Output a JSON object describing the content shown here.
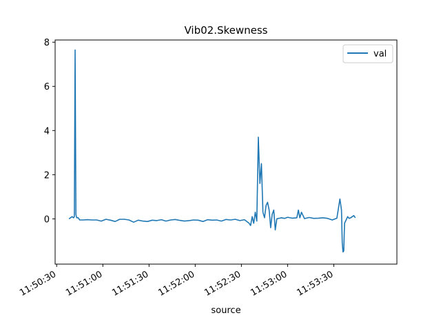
{
  "chart_data": {
    "type": "line",
    "title": "Vib02.Skewness",
    "xlabel": "source",
    "ylabel": "",
    "x_tick_labels": [
      "11:50:30",
      "11:51:00",
      "11:51:30",
      "11:52:00",
      "11:52:30",
      "11:53:00",
      "11:53:30"
    ],
    "x_tick_times": [
      "11:50:30",
      "11:51:00",
      "11:51:30",
      "11:52:00",
      "11:52:30",
      "11:53:00",
      "11:53:30"
    ],
    "y_ticks": [
      0,
      2,
      4,
      6,
      8
    ],
    "xlim": [
      "11:50:29",
      "11:54:11"
    ],
    "ylim": [
      -2.05,
      8.1
    ],
    "legend": {
      "position": "top-right",
      "entries": [
        "val"
      ]
    },
    "grid": false,
    "series": [
      {
        "name": "val",
        "color": "#1f77b4",
        "x": [
          "11:50:38",
          "11:50:39",
          "11:50:40",
          "11:50:41",
          "11:50:41.5",
          "11:50:42",
          "11:50:42.5",
          "11:50:43",
          "11:50:44",
          "11:50:45",
          "11:50:47",
          "11:50:50",
          "11:50:53",
          "11:50:56",
          "11:50:59",
          "11:51:02",
          "11:51:05",
          "11:51:08",
          "11:51:11",
          "11:51:14",
          "11:51:17",
          "11:51:20",
          "11:51:23",
          "11:51:26",
          "11:51:29",
          "11:51:32",
          "11:51:35",
          "11:51:38",
          "11:51:41",
          "11:51:44",
          "11:51:47",
          "11:51:50",
          "11:51:53",
          "11:51:56",
          "11:51:59",
          "11:52:02",
          "11:52:05",
          "11:52:08",
          "11:52:11",
          "11:52:14",
          "11:52:17",
          "11:52:20",
          "11:52:23",
          "11:52:26",
          "11:52:29",
          "11:52:32",
          "11:52:35",
          "11:52:36",
          "11:52:37",
          "11:52:38",
          "11:52:39",
          "11:52:40",
          "11:52:41",
          "11:52:42",
          "11:52:43",
          "11:52:44",
          "11:52:45",
          "11:52:46",
          "11:52:47",
          "11:52:48",
          "11:52:49",
          "11:52:50",
          "11:52:51",
          "11:52:52",
          "11:52:53",
          "11:52:54",
          "11:52:55",
          "11:52:56",
          "11:52:58",
          "11:53:00",
          "11:53:03",
          "11:53:06",
          "11:53:07",
          "11:53:08",
          "11:53:09",
          "11:53:11",
          "11:53:14",
          "11:53:17",
          "11:53:20",
          "11:53:23",
          "11:53:26",
          "11:53:29",
          "11:53:32",
          "11:53:34",
          "11:53:35",
          "11:53:35.5",
          "11:53:36",
          "11:53:36.5",
          "11:53:37",
          "11:53:38",
          "11:53:39",
          "11:53:40",
          "11:53:41",
          "11:53:42",
          "11:53:43",
          "11:53:44"
        ],
        "values": [
          0,
          0.05,
          0.1,
          0.05,
          0.1,
          7.65,
          0.2,
          0.05,
          0.05,
          -0.05,
          -0.05,
          -0.04,
          -0.05,
          -0.05,
          -0.1,
          -0.02,
          -0.06,
          -0.12,
          -0.02,
          -0.02,
          -0.05,
          -0.15,
          -0.06,
          -0.1,
          -0.12,
          -0.06,
          -0.08,
          -0.04,
          -0.1,
          -0.05,
          -0.03,
          -0.07,
          -0.1,
          -0.08,
          -0.05,
          -0.06,
          -0.12,
          -0.04,
          -0.06,
          -0.05,
          -0.1,
          -0.03,
          -0.05,
          -0.02,
          -0.08,
          -0.04,
          -0.2,
          -0.3,
          0.1,
          -0.2,
          0.3,
          -0.1,
          3.7,
          1.6,
          2.5,
          0.3,
          0.05,
          0.6,
          0.75,
          0.4,
          -0.4,
          0.2,
          0.4,
          -0.5,
          0,
          0.02,
          0.03,
          0.05,
          0.02,
          0.07,
          0.03,
          0.05,
          0.4,
          0.05,
          0.3,
          0.01,
          0.06,
          0.02,
          0.03,
          0.05,
          0.02,
          -0.05,
          0.03,
          0.9,
          0.4,
          -1.1,
          -1.5,
          -1.45,
          -0.2,
          -0.05,
          0.1,
          0.02,
          0.05,
          0.1,
          0.15,
          0.05
        ]
      }
    ]
  }
}
